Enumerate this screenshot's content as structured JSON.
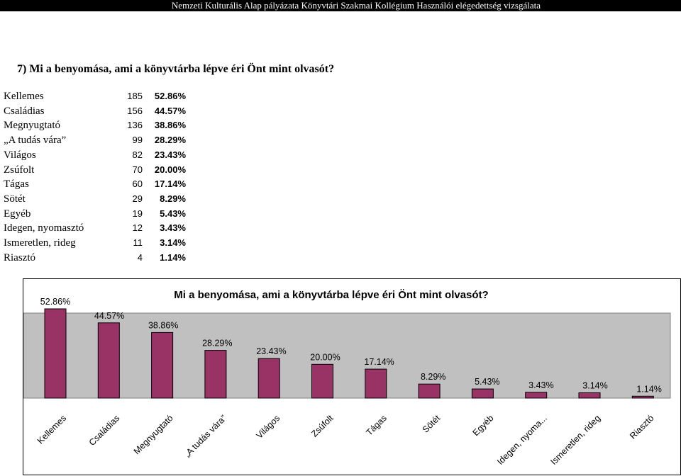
{
  "header": {
    "title": "Nemzeti Kulturális Alap pályázata Könyvtári Szakmai Kollégium Használói elégedettség vizsgálata"
  },
  "question": {
    "text": "7) Mi a benyomása, ami a könyvtárba lépve éri Önt mint olvasót?"
  },
  "table": {
    "rows": [
      {
        "label": "Kellemes",
        "count": "185",
        "pct": "52.86%"
      },
      {
        "label": "Családias",
        "count": "156",
        "pct": "44.57%"
      },
      {
        "label": "Megnyugtató",
        "count": "136",
        "pct": "38.86%"
      },
      {
        "label": "„A tudás vára”",
        "count": "99",
        "pct": "28.29%"
      },
      {
        "label": "Világos",
        "count": "82",
        "pct": "23.43%"
      },
      {
        "label": "Zsúfolt",
        "count": "70",
        "pct": "20.00%"
      },
      {
        "label": "Tágas",
        "count": "60",
        "pct": "17.14%"
      },
      {
        "label": "Sötét",
        "count": "29",
        "pct": "8.29%"
      },
      {
        "label": "Egyéb",
        "count": "19",
        "pct": "5.43%"
      },
      {
        "label": "Idegen, nyomasztó",
        "count": "12",
        "pct": "3.43%"
      },
      {
        "label": "Ismeretlen, rideg",
        "count": "11",
        "pct": "3.14%"
      },
      {
        "label": "Riasztó",
        "count": "4",
        "pct": "1.14%"
      }
    ]
  },
  "chart_data": {
    "type": "bar",
    "title": "Mi a benyomása, ami a könyvtárba lépve éri Önt mint olvasót?",
    "categories": [
      "Kellemes",
      "Családias",
      "Megnyugtató",
      "„A tudás vára”",
      "Világos",
      "Zsúfolt",
      "Tágas",
      "Sötét",
      "Egyéb",
      "Idegen, nyoma...",
      "Ismeretlen, rideg",
      "Riasztó"
    ],
    "values": [
      52.86,
      44.57,
      38.86,
      28.29,
      23.43,
      20.0,
      17.14,
      8.29,
      5.43,
      3.43,
      3.14,
      1.14
    ],
    "data_labels": [
      "52.86%",
      "44.57%",
      "38.86%",
      "28.29%",
      "23.43%",
      "20.00%",
      "17.14%",
      "8.29%",
      "5.43%",
      "3.43%",
      "3.14%",
      "1.14%"
    ],
    "ylim": [
      0,
      60
    ],
    "grid": false,
    "legend": "none",
    "bar_color": "#993366",
    "plot_background": "#c0c0c0"
  }
}
